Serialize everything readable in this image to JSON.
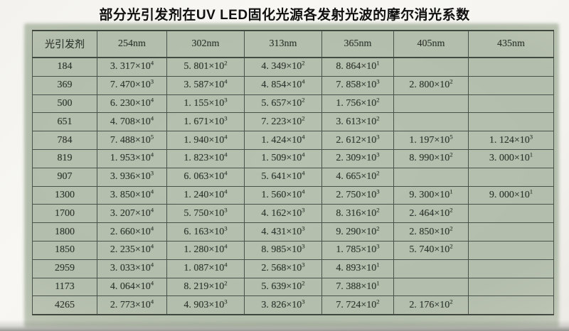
{
  "photo_title": "部分光引发剂在UV LED固化光源各发射光波的摩尔消光系数",
  "table": {
    "header": {
      "photoinitiator_label": "光引发剂",
      "wavelength_columns": [
        "254nm",
        "302nm",
        "313nm",
        "365nm",
        "405nm",
        "435nm"
      ]
    },
    "rows": [
      {
        "photoinitiator": "184",
        "values": [
          "3. 317×10^4",
          "5. 801×10^2",
          "4. 349×10^2",
          "8. 864×10^1",
          "",
          ""
        ]
      },
      {
        "photoinitiator": "369",
        "values": [
          "7. 470×10^3",
          "3. 587×10^4",
          "4. 854×10^4",
          "7. 858×10^3",
          "2. 800×10^2",
          ""
        ]
      },
      {
        "photoinitiator": "500",
        "values": [
          "6. 230×10^4",
          "1. 155×10^3",
          "5. 657×10^2",
          "1. 756×10^2",
          "",
          ""
        ]
      },
      {
        "photoinitiator": "651",
        "values": [
          "4. 708×10^4",
          "1. 671×10^3",
          "7. 223×10^2",
          "3. 613×10^2",
          "",
          ""
        ]
      },
      {
        "photoinitiator": "784",
        "values": [
          "7. 488×10^5",
          "1. 940×10^4",
          "1. 424×10^4",
          "2. 612×10^3",
          "1. 197×10^5",
          "1. 124×10^3"
        ]
      },
      {
        "photoinitiator": "819",
        "values": [
          "1. 953×10^4",
          "1. 823×10^4",
          "1. 509×10^4",
          "2. 309×10^3",
          "8. 990×10^2",
          "3. 000×10^1"
        ]
      },
      {
        "photoinitiator": "907",
        "values": [
          "3. 936×10^3",
          "6. 063×10^4",
          "5. 641×10^4",
          "4. 665×10^2",
          "",
          ""
        ]
      },
      {
        "photoinitiator": "1300",
        "values": [
          "3. 850×10^4",
          "1. 240×10^4",
          "1. 560×10^4",
          "2. 750×10^3",
          "9. 300×10^1",
          "9. 000×10^1"
        ]
      },
      {
        "photoinitiator": "1700",
        "values": [
          "3. 207×10^4",
          "5. 750×10^3",
          "4. 162×10^3",
          "8. 316×10^2",
          "2. 464×10^2",
          ""
        ]
      },
      {
        "photoinitiator": "1800",
        "values": [
          "2. 660×10^4",
          "6. 163×10^3",
          "4. 431×10^3",
          "9. 290×10^2",
          "2. 850×10^2",
          ""
        ]
      },
      {
        "photoinitiator": "1850",
        "values": [
          "2. 235×10^4",
          "1. 280×10^4",
          "8. 985×10^3",
          "1. 785×10^3",
          "5. 740×10^2",
          ""
        ]
      },
      {
        "photoinitiator": "2959",
        "values": [
          "3. 033×10^4",
          "1. 087×10^4",
          "2. 568×10^3",
          "4. 893×10^1",
          "",
          ""
        ]
      },
      {
        "photoinitiator": "1173",
        "values": [
          "4. 064×10^4",
          "8. 219×10^2",
          "5. 639×10^2",
          "7. 388×10^1",
          "",
          ""
        ]
      },
      {
        "photoinitiator": "4265",
        "values": [
          "2. 773×10^4",
          "4. 903×10^3",
          "3. 826×10^3",
          "7. 724×10^2",
          "2. 176×10^2",
          ""
        ]
      }
    ]
  },
  "colors": {
    "paper_green": "#b6c0af",
    "grid_line": "#49524a",
    "table_text": "#2f362f",
    "title_text": "#101010"
  }
}
